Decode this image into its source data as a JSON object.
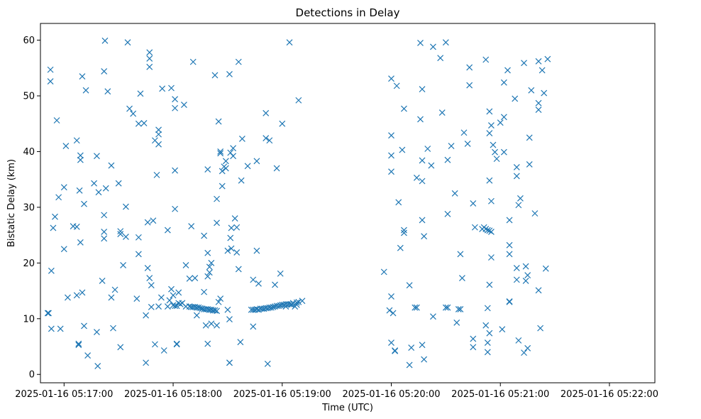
{
  "chart_data": {
    "type": "scatter",
    "title": "Detections in Delay",
    "xlabel": "Time (UTC)",
    "ylabel": "Bistatic Delay (km)",
    "xlim_seconds_from_x0": [
      -13,
      325
    ],
    "ylim": [
      -1.5,
      63
    ],
    "x_ticks": [
      {
        "seconds": 0,
        "label": "2025-01-16 05:17:00"
      },
      {
        "seconds": 60,
        "label": "2025-01-16 05:18:00"
      },
      {
        "seconds": 120,
        "label": "2025-01-16 05:19:00"
      },
      {
        "seconds": 180,
        "label": "2025-01-16 05:20:00"
      },
      {
        "seconds": 240,
        "label": "2025-01-16 05:21:00"
      },
      {
        "seconds": 300,
        "label": "2025-01-16 05:22:00"
      }
    ],
    "y_ticks": [
      0,
      10,
      20,
      30,
      40,
      50,
      60
    ],
    "marker": "x",
    "color": "#1f77b4",
    "grid": false,
    "points_seconds_delay": [
      [
        -9,
        11
      ],
      [
        -8.5,
        11
      ],
      [
        -7.5,
        54.7
      ],
      [
        -7.5,
        52.6
      ],
      [
        -7,
        18.6
      ],
      [
        -7,
        8.2
      ],
      [
        -6,
        26.3
      ],
      [
        -5,
        28.3
      ],
      [
        -4,
        45.6
      ],
      [
        -3,
        31.8
      ],
      [
        -2,
        8.2
      ],
      [
        0,
        22.5
      ],
      [
        0,
        33.6
      ],
      [
        1,
        41
      ],
      [
        2,
        13.8
      ],
      [
        5,
        26.6
      ],
      [
        7,
        26.5
      ],
      [
        7,
        42
      ],
      [
        7,
        14.2
      ],
      [
        8,
        5.3
      ],
      [
        8,
        5.5
      ],
      [
        8.5,
        33
      ],
      [
        9,
        39.3
      ],
      [
        9,
        38.5
      ],
      [
        9,
        23.7
      ],
      [
        10,
        53.5
      ],
      [
        10,
        14.7
      ],
      [
        11,
        8.7
      ],
      [
        11,
        30.6
      ],
      [
        12,
        51
      ],
      [
        13,
        3.4
      ],
      [
        16.5,
        34.3
      ],
      [
        18,
        39.2
      ],
      [
        18,
        7.6
      ],
      [
        18.5,
        1.5
      ],
      [
        19,
        32.7
      ],
      [
        21,
        16.8
      ],
      [
        22,
        28.6
      ],
      [
        22,
        25.6
      ],
      [
        22,
        24.4
      ],
      [
        22,
        54.4
      ],
      [
        22.5,
        59.9
      ],
      [
        23,
        33.4
      ],
      [
        24,
        50.8
      ],
      [
        26,
        13.8
      ],
      [
        26,
        37.5
      ],
      [
        27,
        8.3
      ],
      [
        28,
        15.2
      ],
      [
        30,
        34.3
      ],
      [
        31,
        4.9
      ],
      [
        31,
        25.7
      ],
      [
        31,
        25.2
      ],
      [
        32.5,
        19.6
      ],
      [
        34,
        30.1
      ],
      [
        34,
        24.7
      ],
      [
        35,
        59.6
      ],
      [
        36,
        47.7
      ],
      [
        38,
        46.8
      ],
      [
        40,
        13.6
      ],
      [
        41,
        21.6
      ],
      [
        41,
        24.6
      ],
      [
        41,
        45
      ],
      [
        42,
        50.4
      ],
      [
        44,
        45.1
      ],
      [
        45,
        10.6
      ],
      [
        45,
        2.1
      ],
      [
        46,
        19.1
      ],
      [
        46,
        27.3
      ],
      [
        47,
        55.2
      ],
      [
        47,
        57.8
      ],
      [
        47,
        56.7
      ],
      [
        47,
        17.3
      ],
      [
        48,
        16
      ],
      [
        48,
        12.1
      ],
      [
        49,
        27.6
      ],
      [
        50,
        5.4
      ],
      [
        50,
        42
      ],
      [
        51,
        35.8
      ],
      [
        52,
        43.9
      ],
      [
        52,
        43.1
      ],
      [
        52,
        41.3
      ],
      [
        52,
        12.2
      ],
      [
        53.5,
        13.8
      ],
      [
        54,
        51.3
      ],
      [
        55,
        4.3
      ],
      [
        57,
        25.9
      ],
      [
        57,
        12.2
      ],
      [
        58,
        13.3
      ],
      [
        59,
        15.3
      ],
      [
        59,
        51.4
      ],
      [
        60,
        14.2
      ],
      [
        60,
        12.4
      ],
      [
        61,
        49.4
      ],
      [
        61,
        29.7
      ],
      [
        61,
        36.6
      ],
      [
        61,
        47.8
      ],
      [
        61,
        12.3
      ],
      [
        62,
        5.4
      ],
      [
        62,
        5.5
      ],
      [
        62,
        12.3
      ],
      [
        63,
        14.7
      ],
      [
        63,
        12.8
      ],
      [
        64,
        12.6
      ],
      [
        65,
        12.8
      ],
      [
        66,
        48.4
      ],
      [
        67,
        19.6
      ],
      [
        67,
        12.2
      ],
      [
        69,
        12.2
      ],
      [
        69,
        17.2
      ],
      [
        70,
        12.1
      ],
      [
        70,
        26.6
      ],
      [
        71,
        56.1
      ],
      [
        71,
        12.1
      ],
      [
        72,
        12.1
      ],
      [
        72,
        17.3
      ],
      [
        73,
        12
      ],
      [
        73,
        10.6
      ],
      [
        74,
        12
      ],
      [
        75,
        11.9
      ],
      [
        76,
        11.8
      ],
      [
        76,
        11.8
      ],
      [
        77,
        24.9
      ],
      [
        77,
        11.7
      ],
      [
        77,
        14.8
      ],
      [
        78,
        11.7
      ],
      [
        78,
        8.8
      ],
      [
        79,
        11.7
      ],
      [
        79,
        17.6
      ],
      [
        79,
        21.8
      ],
      [
        79,
        36.8
      ],
      [
        79,
        5.5
      ],
      [
        80,
        11.6
      ],
      [
        80,
        18.3
      ],
      [
        80,
        19.3
      ],
      [
        80,
        11.6
      ],
      [
        81,
        20
      ],
      [
        81,
        11.6
      ],
      [
        81,
        9.1
      ],
      [
        82,
        11.5
      ],
      [
        82,
        11.5
      ],
      [
        83,
        11.5
      ],
      [
        83,
        53.7
      ],
      [
        84,
        11.4
      ],
      [
        84,
        31.5
      ],
      [
        84,
        27.2
      ],
      [
        84,
        8.8
      ],
      [
        85,
        13
      ],
      [
        85,
        45.4
      ],
      [
        86,
        40
      ],
      [
        86,
        39.7
      ],
      [
        86,
        13.6
      ],
      [
        87,
        36.5
      ],
      [
        87,
        33.8
      ],
      [
        88,
        37.3
      ],
      [
        89,
        37
      ],
      [
        89,
        38.3
      ],
      [
        90,
        11.6
      ],
      [
        90,
        22.2
      ],
      [
        91,
        53.9
      ],
      [
        91,
        2.1
      ],
      [
        91,
        2.1
      ],
      [
        91,
        9.9
      ],
      [
        91.5,
        39.8
      ],
      [
        91.5,
        24.5
      ],
      [
        92,
        26.3
      ],
      [
        92,
        22.6
      ],
      [
        93,
        40.6
      ],
      [
        93,
        39.2
      ],
      [
        94,
        28
      ],
      [
        95,
        21.9
      ],
      [
        95,
        26.4
      ],
      [
        96,
        18.9
      ],
      [
        96,
        56.1
      ],
      [
        97,
        5.8
      ],
      [
        97.5,
        34.8
      ],
      [
        98,
        42.3
      ],
      [
        101,
        37.4
      ],
      [
        103,
        11.6
      ],
      [
        104,
        8.6
      ],
      [
        104,
        17
      ],
      [
        104,
        11.6
      ],
      [
        105,
        11.6
      ],
      [
        106,
        22.2
      ],
      [
        106,
        38.3
      ],
      [
        106,
        11.7
      ],
      [
        107,
        11.6
      ],
      [
        107,
        16.3
      ],
      [
        108,
        11.8
      ],
      [
        109,
        11.8
      ],
      [
        110,
        11.8
      ],
      [
        111,
        11.9
      ],
      [
        111,
        42.4
      ],
      [
        111,
        46.9
      ],
      [
        112,
        1.9
      ],
      [
        112,
        11.9
      ],
      [
        113,
        12
      ],
      [
        113,
        42
      ],
      [
        114,
        12
      ],
      [
        115,
        12.1
      ],
      [
        116,
        12.2
      ],
      [
        116,
        16.1
      ],
      [
        117,
        12.3
      ],
      [
        117,
        37
      ],
      [
        118,
        12.3
      ],
      [
        119,
        12.4
      ],
      [
        119,
        18.1
      ],
      [
        120,
        12.5
      ],
      [
        120,
        45
      ],
      [
        121,
        12.5
      ],
      [
        122,
        12.6
      ],
      [
        122,
        12.2
      ],
      [
        123,
        12.6
      ],
      [
        124,
        12.6
      ],
      [
        124,
        59.6
      ],
      [
        125,
        12.6
      ],
      [
        125,
        12.5
      ],
      [
        126,
        12.8
      ],
      [
        127,
        12.2
      ],
      [
        128,
        12.9
      ],
      [
        128,
        12.5
      ],
      [
        129,
        13
      ],
      [
        129,
        49.2
      ],
      [
        131,
        13.2
      ],
      [
        176,
        18.4
      ],
      [
        179,
        11.5
      ],
      [
        180,
        53.1
      ],
      [
        180,
        42.9
      ],
      [
        180,
        39.3
      ],
      [
        180,
        36.4
      ],
      [
        180,
        14
      ],
      [
        180,
        5.7
      ],
      [
        181,
        11
      ],
      [
        182,
        4.3
      ],
      [
        182,
        4.2
      ],
      [
        183,
        51.8
      ],
      [
        184,
        30.9
      ],
      [
        185,
        22.7
      ],
      [
        186,
        40.3
      ],
      [
        187,
        47.7
      ],
      [
        187,
        25.9
      ],
      [
        187,
        25.4
      ],
      [
        190,
        1.7
      ],
      [
        190,
        16
      ],
      [
        191,
        4.8
      ],
      [
        193,
        12
      ],
      [
        194,
        12
      ],
      [
        194,
        35.3
      ],
      [
        196,
        59.5
      ],
      [
        196,
        45.8
      ],
      [
        197,
        38.4
      ],
      [
        197,
        51.2
      ],
      [
        197,
        27.7
      ],
      [
        197,
        34.7
      ],
      [
        197,
        5.3
      ],
      [
        198,
        24.8
      ],
      [
        198,
        2.7
      ],
      [
        200,
        40.5
      ],
      [
        202,
        37.5
      ],
      [
        203,
        10.4
      ],
      [
        203,
        58.8
      ],
      [
        207,
        56.8
      ],
      [
        208,
        47
      ],
      [
        210,
        12
      ],
      [
        210,
        59.6
      ],
      [
        211,
        38.5
      ],
      [
        211,
        28.8
      ],
      [
        211,
        12
      ],
      [
        213,
        41
      ],
      [
        215,
        32.5
      ],
      [
        216,
        9.3
      ],
      [
        217,
        11.7
      ],
      [
        218,
        21.6
      ],
      [
        218,
        11.7
      ],
      [
        219,
        17.3
      ],
      [
        220,
        43.4
      ],
      [
        222,
        41.4
      ],
      [
        223,
        51.9
      ],
      [
        223,
        55.1
      ],
      [
        225,
        30.7
      ],
      [
        225,
        4.9
      ],
      [
        225,
        6.4
      ],
      [
        226,
        26.4
      ],
      [
        230,
        26.1
      ],
      [
        231,
        26.4
      ],
      [
        232,
        56.5
      ],
      [
        232,
        8.8
      ],
      [
        232,
        26.1
      ],
      [
        233,
        11.9
      ],
      [
        233,
        25.9
      ],
      [
        233,
        5.7
      ],
      [
        233,
        4
      ],
      [
        234,
        43.3
      ],
      [
        234,
        47.2
      ],
      [
        234,
        34.8
      ],
      [
        234,
        25.8
      ],
      [
        234,
        16.1
      ],
      [
        234,
        7.4
      ],
      [
        235,
        31.1
      ],
      [
        235,
        44.7
      ],
      [
        235,
        25.6
      ],
      [
        235,
        21
      ],
      [
        236,
        41.2
      ],
      [
        237,
        39.9
      ],
      [
        238,
        38.7
      ],
      [
        240,
        45.2
      ],
      [
        241,
        8.1
      ],
      [
        242,
        39.9
      ],
      [
        242,
        46.2
      ],
      [
        242,
        52.4
      ],
      [
        244,
        54.6
      ],
      [
        245,
        27.7
      ],
      [
        245,
        23.2
      ],
      [
        245,
        21.6
      ],
      [
        245,
        13.1
      ],
      [
        245,
        13
      ],
      [
        248,
        49.5
      ],
      [
        249,
        37.2
      ],
      [
        249,
        35.6
      ],
      [
        249,
        19.1
      ],
      [
        249,
        17
      ],
      [
        250,
        6.1
      ],
      [
        250,
        30.4
      ],
      [
        251,
        31.6
      ],
      [
        253,
        55.9
      ],
      [
        253,
        3.9
      ],
      [
        254,
        19.4
      ],
      [
        254,
        16.8
      ],
      [
        255,
        4.7
      ],
      [
        255,
        17.8
      ],
      [
        256,
        37.7
      ],
      [
        256,
        42.5
      ],
      [
        257,
        51
      ],
      [
        259,
        28.9
      ],
      [
        261,
        56.2
      ],
      [
        261,
        47.5
      ],
      [
        261,
        48.7
      ],
      [
        261,
        15.1
      ],
      [
        262,
        8.3
      ],
      [
        263,
        54.6
      ],
      [
        264,
        50.5
      ],
      [
        265,
        19
      ],
      [
        266,
        56.6
      ]
    ]
  }
}
